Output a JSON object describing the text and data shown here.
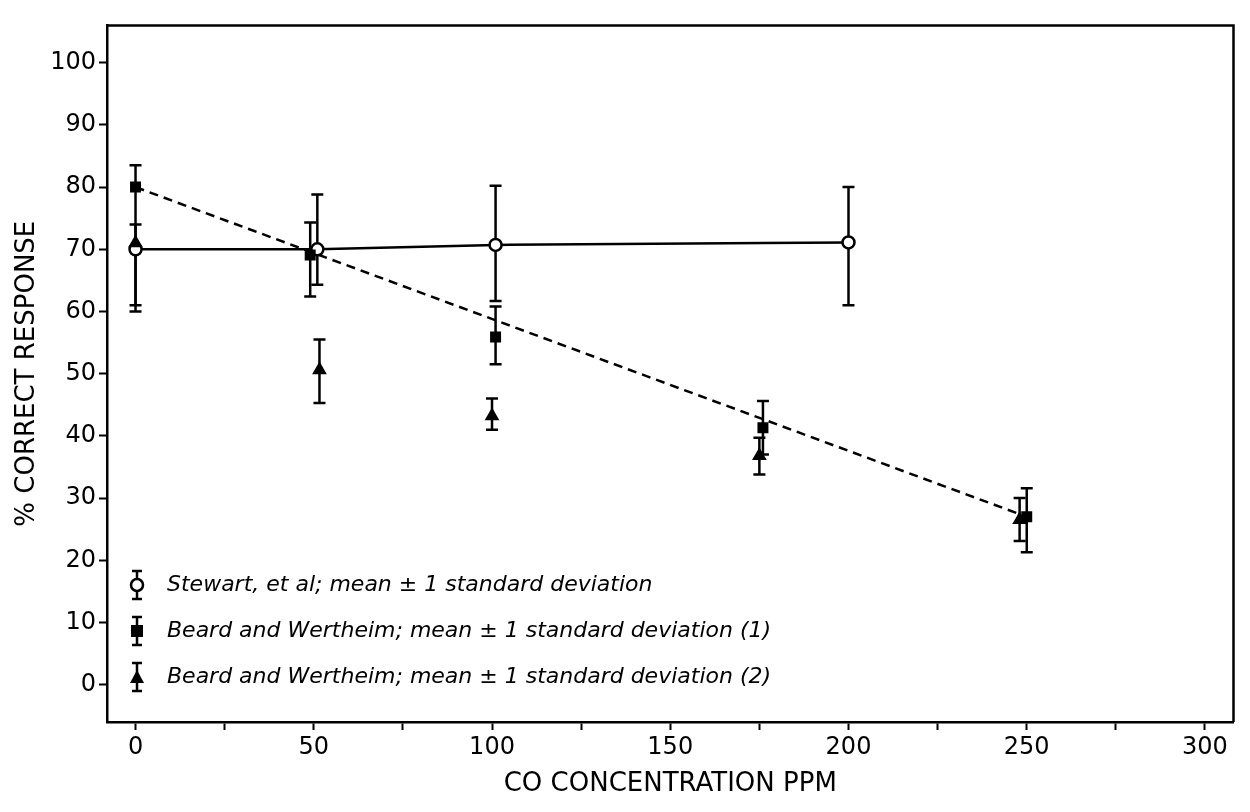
{
  "chart_data": {
    "type": "scatter",
    "xlabel": "CO CONCENTRATION PPM",
    "ylabel": "% CORRECT RESPONSE",
    "xlim": [
      -8,
      308
    ],
    "ylim": [
      -6,
      106
    ],
    "xticks": [
      0,
      {
        "value": 25,
        "label": null
      },
      50,
      {
        "value": 75,
        "label": null
      },
      100,
      {
        "value": 125,
        "label": null
      },
      150,
      {
        "value": 175,
        "label": null
      },
      200,
      {
        "value": 225,
        "label": null
      },
      250,
      {
        "value": 275,
        "label": null
      },
      300
    ],
    "yticks": [
      0,
      10,
      20,
      30,
      40,
      50,
      60,
      70,
      80,
      90,
      100
    ],
    "grid": false,
    "legend": "bottom left",
    "series": [
      {
        "name": "Stewart, et al; mean ± 1 standard deviation",
        "type": "line",
        "marker": "circle",
        "line_style": "solid",
        "color": "#000000",
        "x": [
          0,
          51,
          101,
          200
        ],
        "values": [
          70,
          70,
          70.7,
          71.1
        ],
        "errors": [
          [
            60,
            74
          ],
          [
            64.3,
            78.8
          ],
          [
            61.7,
            80.2
          ],
          [
            61,
            80
          ]
        ]
      },
      {
        "name": "Beard and Wertheim; mean ± 1 standard deviation (1)",
        "type": "scatter",
        "marker": "square",
        "color": "#000000",
        "x": [
          0,
          49,
          101,
          176,
          250
        ],
        "values": [
          80,
          69.1,
          55.9,
          41.3,
          27
        ],
        "errors": [
          [
            61,
            83.5
          ],
          [
            62.4,
            74.3
          ],
          [
            51.5,
            60.8
          ],
          [
            37,
            45.6
          ],
          [
            21.3,
            31.6
          ]
        ]
      },
      {
        "name": "Beard and Wertheim; mean ± 1 standard deviation (2)",
        "type": "scatter",
        "marker": "triangle",
        "color": "#000000",
        "x": [
          0,
          51.6,
          100,
          175,
          248
        ],
        "values": [
          71,
          50.6,
          43.2,
          36.8,
          26.5
        ],
        "errors": [
          null,
          [
            45.3,
            55.5
          ],
          [
            41,
            46
          ],
          [
            33.8,
            39.7
          ],
          [
            23.1,
            30
          ]
        ]
      },
      {
        "type": "line",
        "marker": "none",
        "line_style": "dashed",
        "color": "#000000",
        "x": [
          0,
          250
        ],
        "values": [
          80,
          27
        ]
      }
    ]
  }
}
